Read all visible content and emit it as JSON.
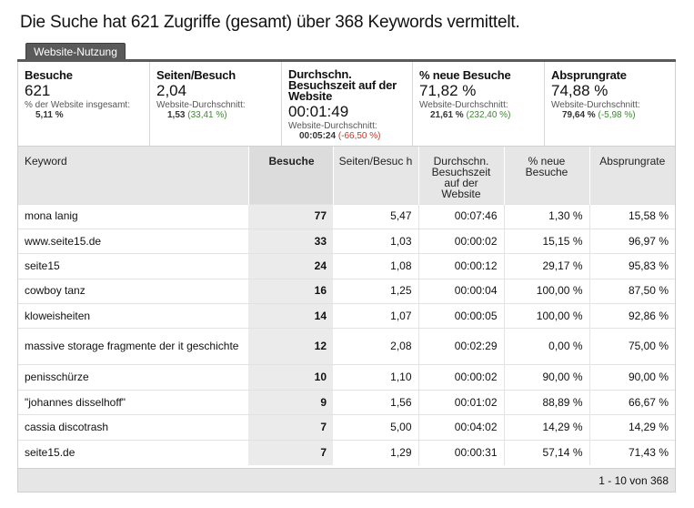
{
  "title": "Die Suche hat 621 Zugriffe (gesamt) über 368 Keywords vermittelt.",
  "tab": "Website-Nutzung",
  "metrics": {
    "visits": {
      "label": "Besuche",
      "value": "621",
      "sub_label": "% der Website insgesamt:",
      "sub_value": "5,11 %"
    },
    "pages": {
      "label": "Seiten/Besuch",
      "value": "2,04",
      "sub_label": "Website-Durchschnitt:",
      "sub_value": "1,53",
      "delta": "(33,41 %)"
    },
    "duration": {
      "label": "Durchschn. Besuchszeit auf der Website",
      "value": "00:01:49",
      "sub_label": "Website-Durchschnitt:",
      "sub_value": "00:05:24",
      "delta": "(-66,50 %)"
    },
    "new_visits": {
      "label": "% neue Besuche",
      "value": "71,82 %",
      "sub_label": "Website-Durchschnitt:",
      "sub_value": "21,61 %",
      "delta": "(232,40 %)"
    },
    "bounce": {
      "label": "Absprungrate",
      "value": "74,88 %",
      "sub_label": "Website-Durchschnitt:",
      "sub_value": "79,64 %",
      "delta": "(-5,98 %)"
    }
  },
  "table": {
    "headers": {
      "keyword": "Keyword",
      "visits": "Besuche",
      "pages": "Seiten/Besuc h",
      "duration": "Durchschn. Besuchszeit auf der Website",
      "new": "% neue Besuche",
      "bounce": "Absprungrate"
    },
    "rows": [
      {
        "keyword": "mona lanig",
        "visits": "77",
        "pages": "5,47",
        "duration": "00:07:46",
        "new": "1,30 %",
        "bounce": "15,58 %"
      },
      {
        "keyword": "www.seite15.de",
        "visits": "33",
        "pages": "1,03",
        "duration": "00:00:02",
        "new": "15,15 %",
        "bounce": "96,97 %"
      },
      {
        "keyword": "seite15",
        "visits": "24",
        "pages": "1,08",
        "duration": "00:00:12",
        "new": "29,17 %",
        "bounce": "95,83 %"
      },
      {
        "keyword": "cowboy tanz",
        "visits": "16",
        "pages": "1,25",
        "duration": "00:00:04",
        "new": "100,00 %",
        "bounce": "87,50 %"
      },
      {
        "keyword": "kloweisheiten",
        "visits": "14",
        "pages": "1,07",
        "duration": "00:00:05",
        "new": "100,00 %",
        "bounce": "92,86 %"
      },
      {
        "keyword": "massive storage fragmente der it geschichte",
        "visits": "12",
        "pages": "2,08",
        "duration": "00:02:29",
        "new": "0,00 %",
        "bounce": "75,00 %"
      },
      {
        "keyword": "penisschürze",
        "visits": "10",
        "pages": "1,10",
        "duration": "00:00:02",
        "new": "90,00 %",
        "bounce": "90,00 %"
      },
      {
        "keyword": "\"johannes disselhoff\"",
        "visits": "9",
        "pages": "1,56",
        "duration": "00:01:02",
        "new": "88,89 %",
        "bounce": "66,67 %"
      },
      {
        "keyword": "cassia discotrash",
        "visits": "7",
        "pages": "5,00",
        "duration": "00:04:02",
        "new": "14,29 %",
        "bounce": "14,29 %"
      },
      {
        "keyword": "seite15.de",
        "visits": "7",
        "pages": "1,29",
        "duration": "00:00:31",
        "new": "57,14 %",
        "bounce": "71,43 %"
      }
    ]
  },
  "pagination": "1 - 10 von 368"
}
